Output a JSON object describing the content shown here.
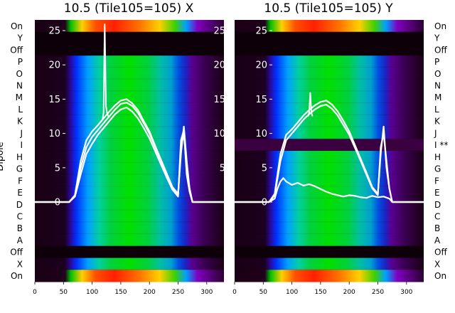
{
  "chart_data": [
    {
      "type": "heatmap",
      "title": "10.5 (Tile105=105) X",
      "ylabel": "Dipole",
      "row_labels": [
        "On",
        "Y",
        "Off",
        "P",
        "O",
        "N",
        "M",
        "L",
        "K",
        "J",
        "I",
        "H",
        "G",
        "F",
        "E",
        "D",
        "C",
        "B",
        "A",
        "Off",
        "X",
        "On"
      ],
      "x_ticks": [
        0,
        50,
        100,
        150,
        200,
        250,
        300
      ],
      "xlim": [
        0,
        330
      ],
      "overlay_ticks": [
        0,
        5,
        10,
        15,
        20,
        25
      ],
      "overlay_ylim": [
        -1.5,
        27
      ],
      "series": [
        {
          "name": "",
          "x": [
            0,
            60,
            70,
            80,
            90,
            100,
            110,
            120,
            130,
            140,
            150,
            160,
            170,
            180,
            190,
            200,
            210,
            220,
            230,
            240,
            250,
            255,
            260,
            265,
            270,
            275,
            330
          ],
          "y": [
            0,
            0,
            1,
            5,
            8,
            9.5,
            10.5,
            11.5,
            12.5,
            13.5,
            14.3,
            14.5,
            14,
            13,
            11.5,
            10,
            8,
            6,
            4,
            2,
            1,
            8,
            10,
            5,
            2,
            0,
            0
          ]
        },
        {
          "name": "",
          "x": [
            0,
            60,
            70,
            80,
            90,
            100,
            110,
            120,
            130,
            140,
            150,
            160,
            170,
            180,
            190,
            200,
            210,
            220,
            230,
            240,
            250,
            255,
            260,
            265,
            270,
            275,
            330
          ],
          "y": [
            0,
            0,
            1,
            6,
            9,
            10.3,
            11.2,
            12.2,
            13.2,
            14.1,
            14.8,
            15,
            14.4,
            13.4,
            11.8,
            10.3,
            8.2,
            6.2,
            4.2,
            2.2,
            1.2,
            7,
            11,
            6,
            2,
            0,
            0
          ]
        },
        {
          "name": "",
          "x": [
            0,
            60,
            70,
            80,
            90,
            100,
            110,
            120,
            130,
            140,
            150,
            160,
            170,
            180,
            190,
            200,
            210,
            220,
            230,
            240,
            250,
            255,
            260,
            265,
            270,
            275,
            330
          ],
          "y": [
            0,
            0,
            0.8,
            4,
            7,
            8.5,
            9.8,
            10.8,
            11.8,
            12.8,
            13.5,
            13.8,
            13.2,
            12.2,
            10.8,
            9.3,
            7.4,
            5.5,
            3.6,
            1.8,
            0.8,
            9,
            10.5,
            4,
            1.5,
            0,
            0
          ]
        }
      ],
      "spike": {
        "x": [
          118,
          120,
          122,
          124,
          126,
          128
        ],
        "y": [
          12,
          13,
          26,
          14,
          13,
          12.5
        ]
      }
    },
    {
      "type": "heatmap",
      "title": "10.5 (Tile105=105) Y",
      "row_labels": [
        "On",
        "Y",
        "Off",
        "P",
        "O",
        "N",
        "M",
        "L",
        "K",
        "J",
        "I **",
        "H",
        "G",
        "F",
        "E",
        "D",
        "C",
        "B",
        "A",
        "Off",
        "X",
        "On"
      ],
      "x_ticks": [
        0,
        50,
        100,
        150,
        200,
        250,
        300
      ],
      "xlim": [
        0,
        330
      ],
      "overlay_ticks": [
        0,
        5,
        10,
        15,
        20,
        25
      ],
      "overlay_ylim": [
        -1.5,
        27
      ],
      "series": [
        {
          "name": "",
          "x": [
            0,
            60,
            70,
            80,
            90,
            100,
            110,
            120,
            130,
            140,
            150,
            160,
            170,
            180,
            190,
            200,
            210,
            220,
            230,
            240,
            250,
            255,
            260,
            265,
            270,
            275,
            330
          ],
          "y": [
            0,
            0,
            1,
            6,
            9,
            10,
            11,
            12,
            12.8,
            13.5,
            14,
            14.2,
            13.6,
            12.6,
            11.2,
            9.8,
            7.9,
            6,
            4,
            2,
            1,
            8,
            10,
            6,
            2,
            0,
            0
          ]
        },
        {
          "name": "",
          "x": [
            0,
            60,
            70,
            80,
            90,
            100,
            110,
            120,
            130,
            140,
            150,
            160,
            170,
            180,
            190,
            200,
            210,
            220,
            230,
            240,
            250,
            255,
            260,
            265,
            270,
            275,
            330
          ],
          "y": [
            0,
            0,
            1.2,
            7,
            9.8,
            10.6,
            11.6,
            12.6,
            13.4,
            14.1,
            14.6,
            14.8,
            14.2,
            13.2,
            11.8,
            10.3,
            8.3,
            6.3,
            4.3,
            2.2,
            1.2,
            7,
            11,
            5,
            2,
            0,
            0
          ]
        },
        {
          "name": "",
          "x": [
            0,
            60,
            70,
            75,
            80,
            85,
            90,
            100,
            110,
            120,
            130,
            140,
            150,
            160,
            170,
            180,
            190,
            200,
            210,
            220,
            230,
            240,
            250,
            260,
            270,
            275,
            330
          ],
          "y": [
            0,
            0,
            0.5,
            2,
            3,
            3.5,
            3,
            2.5,
            2.8,
            2.4,
            2.6,
            2.3,
            1.9,
            1.5,
            1.2,
            1,
            0.8,
            1,
            0.9,
            0.7,
            0.6,
            0.9,
            0.7,
            0.8,
            0.5,
            0,
            0
          ]
        }
      ],
      "spike": {
        "x": [
          128,
          130,
          132,
          134,
          136
        ],
        "y": [
          12.5,
          13,
          16,
          13,
          12.5
        ]
      }
    }
  ]
}
